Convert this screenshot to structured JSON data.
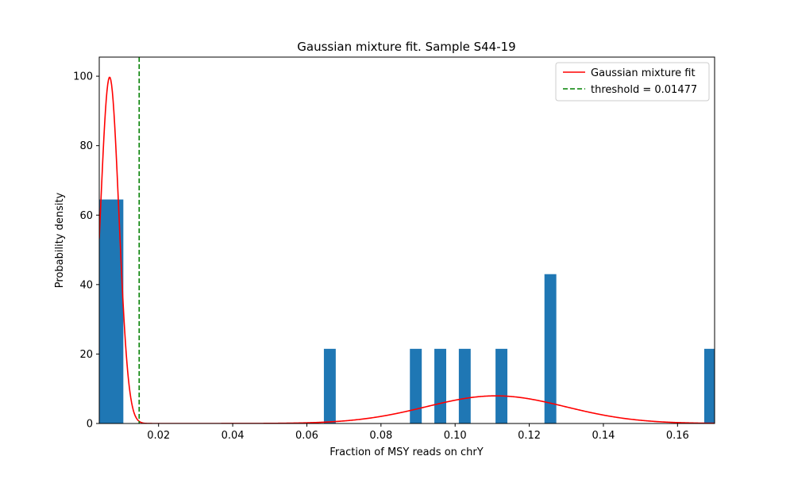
{
  "chart_data": {
    "type": "histogram",
    "title": "Gaussian mixture fit. Sample S44-19",
    "xlabel": "Fraction of MSY reads on chrY",
    "ylabel": "Probability density",
    "xlim": [
      0.004,
      0.17
    ],
    "ylim": [
      0,
      105.5
    ],
    "xticks": [
      0.02,
      0.04,
      0.06,
      0.08,
      0.1,
      0.12,
      0.14,
      0.16
    ],
    "xtick_labels": [
      "0.02",
      "0.04",
      "0.06",
      "0.08",
      "0.10",
      "0.12",
      "0.14",
      "0.16"
    ],
    "yticks": [
      0,
      20,
      40,
      60,
      80,
      100
    ],
    "ytick_labels": [
      "0",
      "20",
      "40",
      "60",
      "80",
      "100"
    ],
    "bar_color": "#1f77b4",
    "bars": [
      {
        "x0": 0.004,
        "x1": 0.0105,
        "value": 64.5
      },
      {
        "x0": 0.0646,
        "x1": 0.0678,
        "value": 21.5
      },
      {
        "x0": 0.0878,
        "x1": 0.091,
        "value": 21.5
      },
      {
        "x0": 0.0944,
        "x1": 0.0976,
        "value": 21.5
      },
      {
        "x0": 0.101,
        "x1": 0.1042,
        "value": 21.5
      },
      {
        "x0": 0.1109,
        "x1": 0.1141,
        "value": 21.5
      },
      {
        "x0": 0.1241,
        "x1": 0.1273,
        "value": 43.0
      },
      {
        "x0": 0.1672,
        "x1": 0.1705,
        "value": 21.5
      }
    ],
    "series": [
      {
        "name": "Gaussian mixture fit",
        "type": "line",
        "color": "#ff0000",
        "components": [
          {
            "weight": 0.625,
            "mean": 0.0068,
            "sd": 0.0025
          },
          {
            "weight": 0.375,
            "mean": 0.111,
            "sd": 0.0188
          }
        ]
      },
      {
        "name": "threshold = 0.01477",
        "type": "vline",
        "color": "#008000",
        "x": 0.01477
      }
    ],
    "legend_position": "top-right"
  }
}
